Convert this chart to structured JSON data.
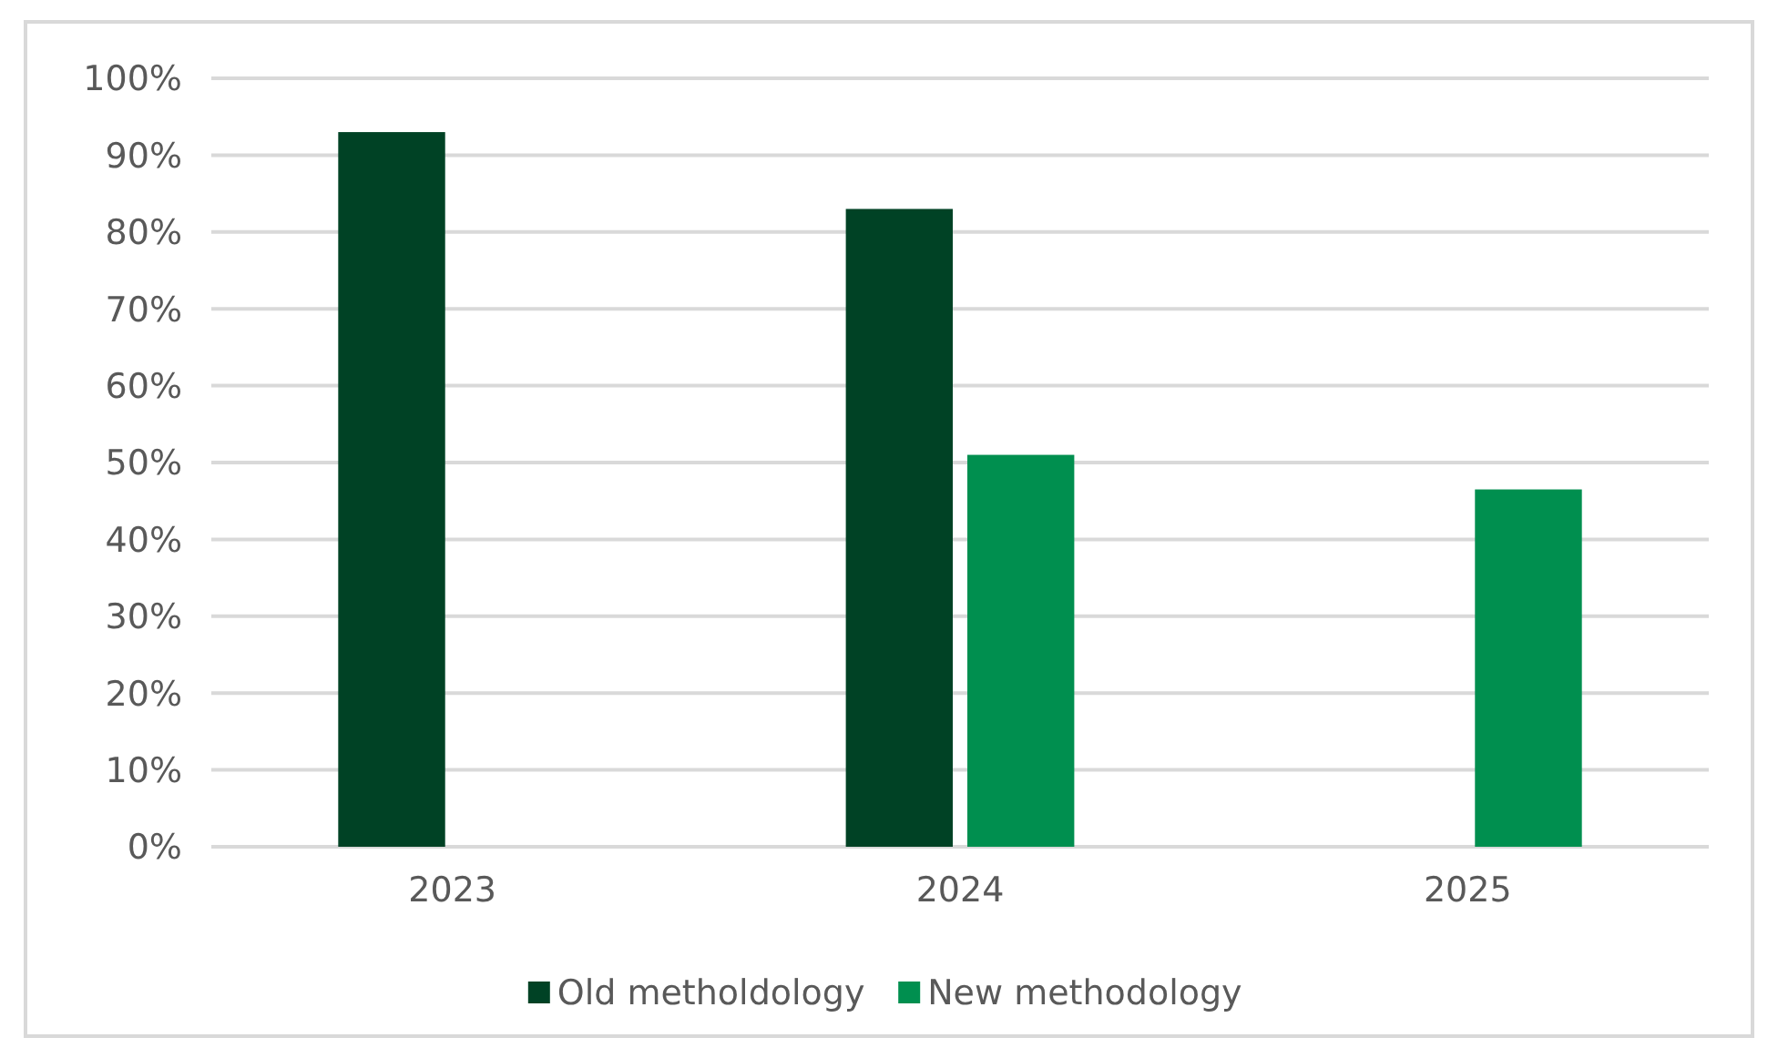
{
  "chart_data": {
    "type": "bar",
    "categories": [
      "2023",
      "2024",
      "2025"
    ],
    "series": [
      {
        "name": "Old metholdology",
        "color": "#004225",
        "values": [
          93,
          83,
          null
        ]
      },
      {
        "name": "New methodology",
        "color": "#008f4f",
        "values": [
          null,
          51,
          46.5
        ]
      }
    ],
    "ylim": [
      0,
      100
    ],
    "yticks": [
      {
        "value": 0,
        "label": "0%"
      },
      {
        "value": 10,
        "label": "10%"
      },
      {
        "value": 20,
        "label": "20%"
      },
      {
        "value": 30,
        "label": "30%"
      },
      {
        "value": 40,
        "label": "40%"
      },
      {
        "value": 50,
        "label": "50%"
      },
      {
        "value": 60,
        "label": "60%"
      },
      {
        "value": 70,
        "label": "70%"
      },
      {
        "value": 80,
        "label": "80%"
      },
      {
        "value": 90,
        "label": "90%"
      },
      {
        "value": 100,
        "label": "100%"
      }
    ],
    "grid": "y",
    "legend": "bottom"
  }
}
